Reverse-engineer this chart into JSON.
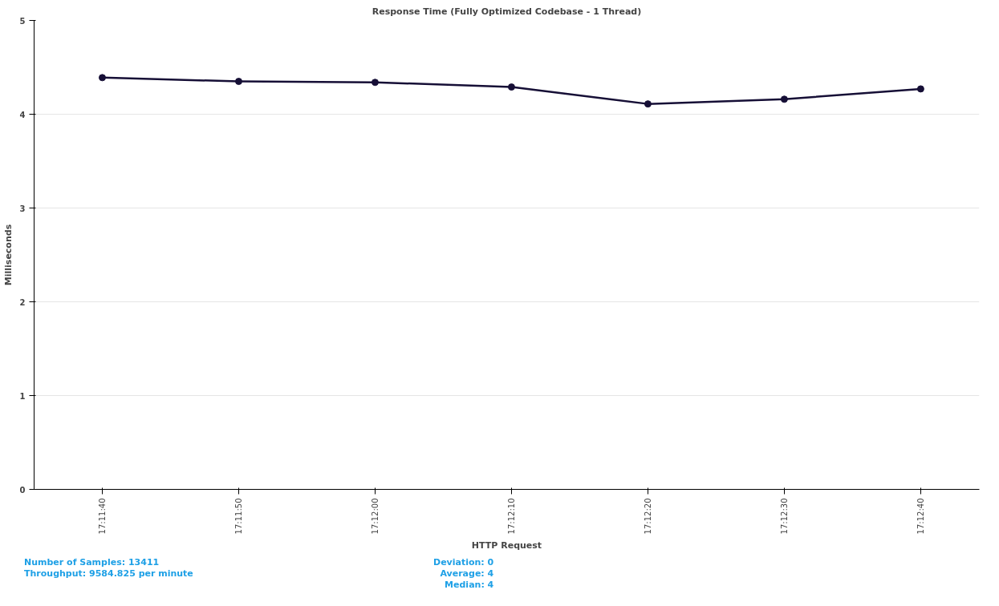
{
  "chart_data": {
    "type": "line",
    "title": "Response Time (Fully Optimized Codebase - 1 Thread)",
    "xlabel": "HTTP Request",
    "ylabel": "Milliseconds",
    "categories": [
      "17:11:40",
      "17:11:50",
      "17:12:00",
      "17:12:10",
      "17:12:20",
      "17:12:30",
      "17:12:40"
    ],
    "series": [
      {
        "color": "#160f36",
        "values": [
          4.39,
          4.35,
          4.34,
          4.29,
          4.11,
          4.16,
          4.27
        ]
      }
    ],
    "ylim": [
      0,
      5
    ],
    "yticks": [
      0,
      1,
      2,
      3,
      4,
      5
    ],
    "grid": "y",
    "marker": "circle",
    "line_style": "solid",
    "annotations": [
      "Number of Samples: 13411",
      "Throughput: 9584.825 per minute",
      "Deviation: 0",
      "Average: 4",
      "Median: 4"
    ]
  }
}
